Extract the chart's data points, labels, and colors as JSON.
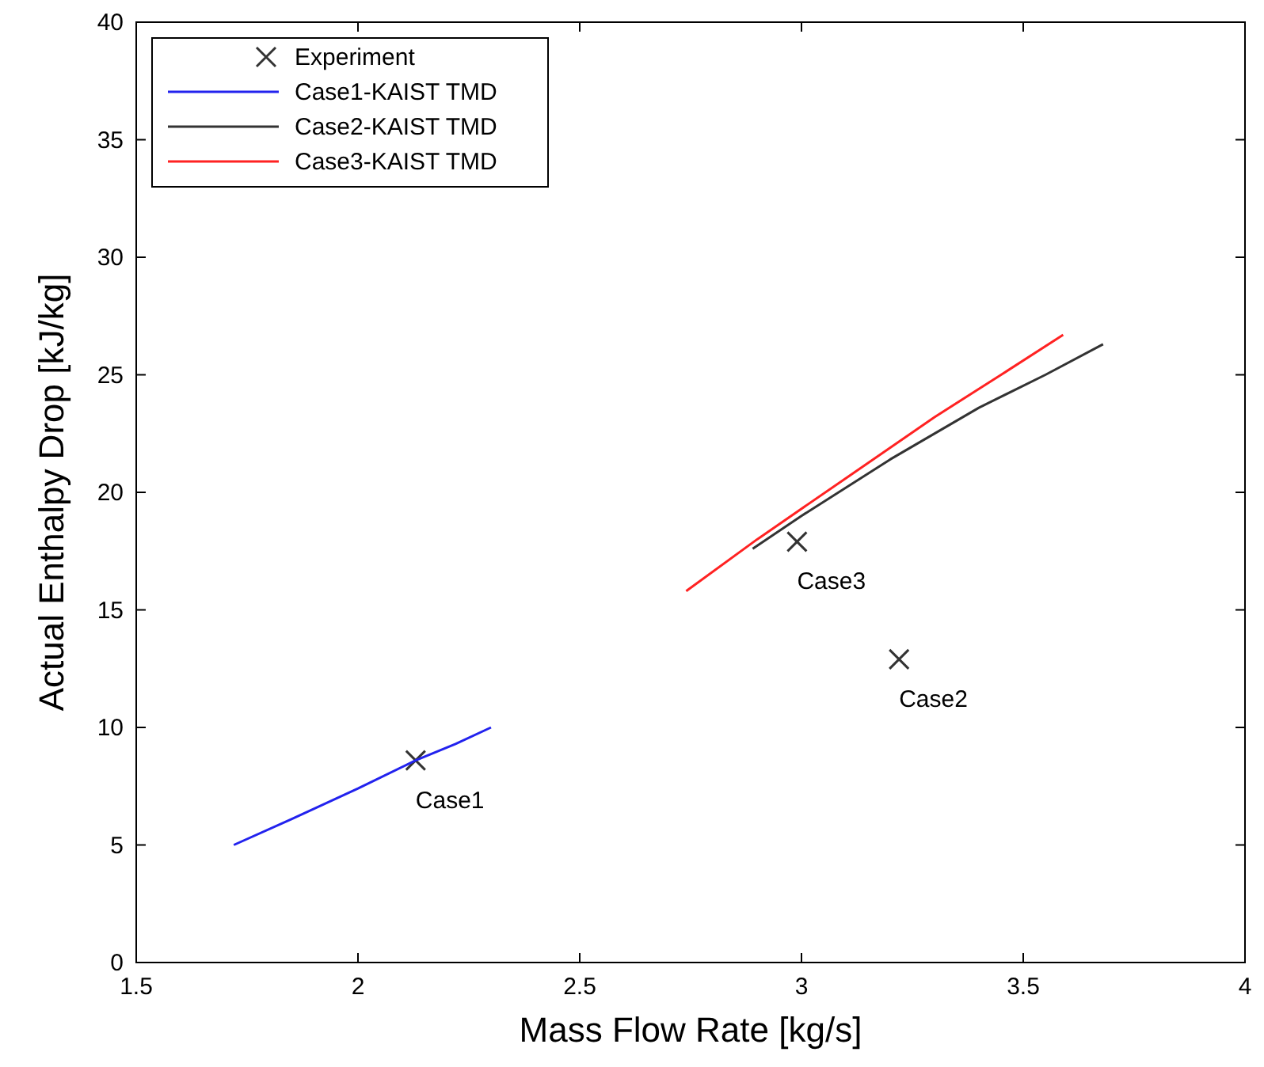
{
  "chart_data": {
    "type": "line",
    "xlabel": "Mass Flow Rate [kg/s]",
    "ylabel": "Actual Enthalpy Drop [kJ/kg]",
    "xlim": [
      1.5,
      4
    ],
    "ylim": [
      0,
      40
    ],
    "xticks": [
      1.5,
      2,
      2.5,
      3,
      3.5,
      4
    ],
    "yticks": [
      0,
      5,
      10,
      15,
      20,
      25,
      30,
      35,
      40
    ],
    "legend": "top left",
    "grid": false,
    "series": [
      {
        "name": "Experiment",
        "type": "scatter",
        "marker": "cross",
        "color": "#333333",
        "x": [
          2.13,
          3.22,
          2.99
        ],
        "values": [
          8.6,
          12.9,
          17.9
        ]
      },
      {
        "name": "Case1-KAIST TMD",
        "color": "#2222ee",
        "marker": "none",
        "x": [
          1.72,
          1.85,
          2.0,
          2.13,
          2.22,
          2.3
        ],
        "values": [
          5.0,
          6.1,
          7.4,
          8.6,
          9.3,
          10.0
        ]
      },
      {
        "name": "Case2-KAIST TMD",
        "color": "#333333",
        "marker": "none",
        "x": [
          2.89,
          3.0,
          3.2,
          3.4,
          3.55,
          3.68
        ],
        "values": [
          17.6,
          19.0,
          21.4,
          23.6,
          25.0,
          26.3
        ]
      },
      {
        "name": "Case3-KAIST TMD",
        "color": "#ff2222",
        "marker": "none",
        "x": [
          2.74,
          2.9,
          3.1,
          3.3,
          3.45,
          3.59
        ],
        "values": [
          15.8,
          18.0,
          20.6,
          23.2,
          25.0,
          26.7
        ]
      }
    ],
    "annotations": [
      {
        "text": "Case1",
        "x": 2.13,
        "y": 8.6
      },
      {
        "text": "Case2",
        "x": 3.22,
        "y": 12.9
      },
      {
        "text": "Case3",
        "x": 2.99,
        "y": 17.9
      }
    ]
  }
}
